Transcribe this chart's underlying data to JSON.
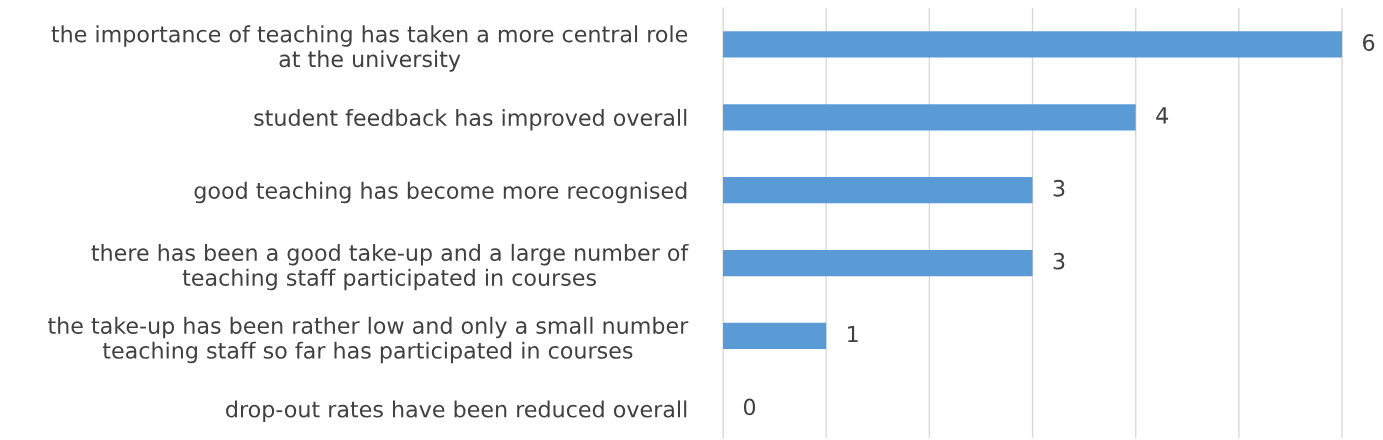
{
  "chart_data": {
    "type": "bar",
    "orientation": "horizontal",
    "categories": [
      "the importance of teaching has taken a more central role\nat the university",
      "student feedback has improved overall",
      "good teaching has become more recognised",
      "there has been a good take-up and a large number of\nteaching staff participated in courses",
      "the take-up has been rather low and only a small number\nteaching staff so far has participated in courses",
      "drop-out rates have been reduced overall"
    ],
    "values": [
      6,
      4,
      3,
      3,
      1,
      0
    ],
    "color": "#5b9bd5",
    "xticks": [
      {
        "value": 0,
        "label": null
      },
      {
        "value": 1,
        "label": null
      },
      {
        "value": 2,
        "label": null
      },
      {
        "value": 3,
        "label": null
      },
      {
        "value": 4,
        "label": null
      },
      {
        "value": 5,
        "label": null
      },
      {
        "value": 6,
        "label": null
      }
    ],
    "grid": "x",
    "tick_labels": "y",
    "data_labels": true
  }
}
